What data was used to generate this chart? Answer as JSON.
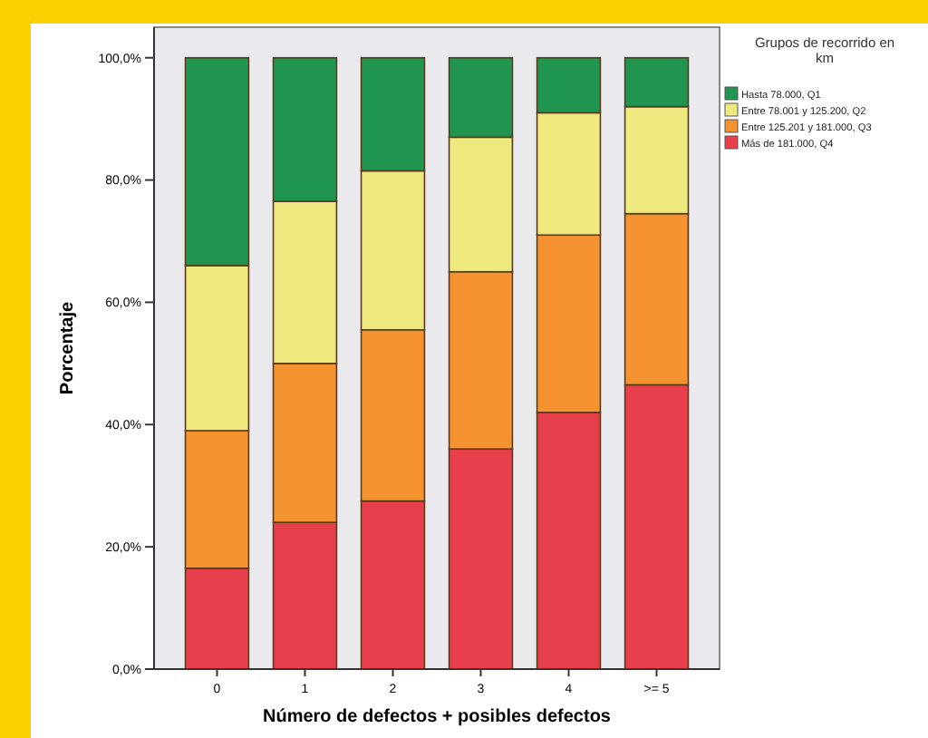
{
  "chart_data": {
    "type": "bar",
    "stacked": true,
    "xlabel": "Número de defectos + posibles defectos",
    "ylabel": "Porcentaje",
    "legend_title": "Grupos de recorrido en km",
    "categories": [
      "0",
      "1",
      "2",
      "3",
      "4",
      ">= 5"
    ],
    "series": [
      {
        "name": "Más de 181.000, Q4",
        "color": "#e8404a",
        "values": [
          16.5,
          24,
          27.5,
          36,
          42,
          46.5
        ]
      },
      {
        "name": "Entre 125.201 y 181.000, Q3",
        "color": "#f59331",
        "values": [
          22.5,
          26,
          28,
          29,
          29,
          28
        ]
      },
      {
        "name": "Entre 78.001 y 125.200, Q2",
        "color": "#eee97e",
        "values": [
          27,
          26.5,
          26,
          22,
          20,
          17.5
        ]
      },
      {
        "name": "Hasta 78.000, Q1",
        "color": "#1f9550",
        "values": [
          34,
          23.5,
          18.5,
          13,
          9,
          8
        ]
      }
    ],
    "ylim": [
      0,
      105
    ],
    "yticks": [
      {
        "value": 0,
        "label": "0,0%"
      },
      {
        "value": 20,
        "label": "20,0%"
      },
      {
        "value": 40,
        "label": "40,0%"
      },
      {
        "value": 60,
        "label": "60,0%"
      },
      {
        "value": 80,
        "label": "80,0%"
      },
      {
        "value": 100,
        "label": "100,0%"
      }
    ],
    "legend": "right",
    "grid": false
  }
}
